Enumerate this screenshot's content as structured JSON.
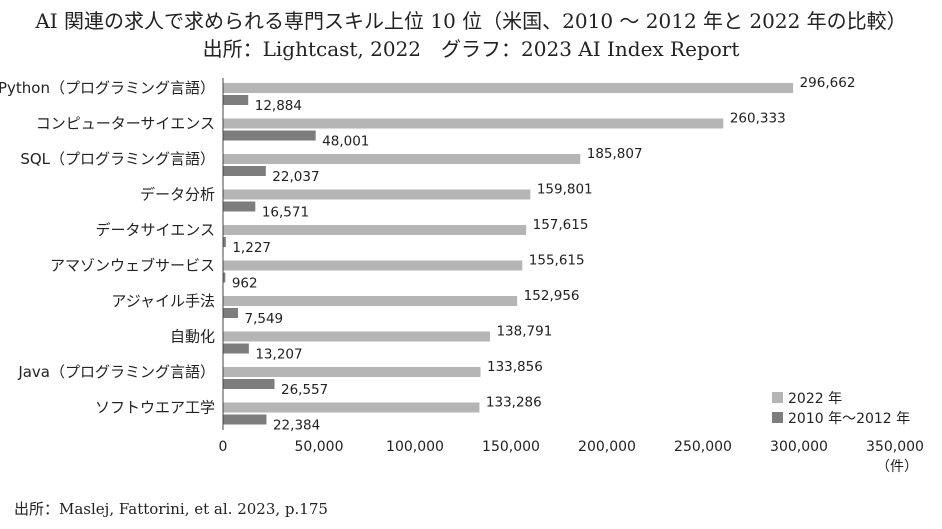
{
  "header": {
    "title_line1": "AI 関連の求人で求められる専門スキル上位 10 位（米国、2010 ～ 2012 年と 2022 年の比較）",
    "title_line2": "出所：Lightcast, 2022　グラフ：2023 AI Index Report"
  },
  "footer": {
    "source": "出所：Maslej, Fattorini, et al. 2023, p.175"
  },
  "chart_data": {
    "type": "bar",
    "orientation": "horizontal",
    "categories": [
      "Python（プログラミング言語）",
      "コンピューターサイエンス",
      "SQL（プログラミング言語）",
      "データ分析",
      "データサイエンス",
      "アマゾンウェブサービス",
      "アジャイル手法",
      "自動化",
      "Java（プログラミング言語）",
      "ソフトウエア工学"
    ],
    "series": [
      {
        "name": "2022 年",
        "color": "#b5b5b5",
        "values": [
          296662,
          260333,
          185807,
          159801,
          157615,
          155615,
          152956,
          138791,
          133856,
          133286
        ],
        "labels": [
          "296,662",
          "260,333",
          "185,807",
          "159,801",
          "157,615",
          "155,615",
          "152,956",
          "138,791",
          "133,856",
          "133,286"
        ]
      },
      {
        "name": "2010 年～2012 年",
        "color": "#7d7d7d",
        "values": [
          12884,
          48001,
          22037,
          16571,
          1227,
          962,
          7549,
          13207,
          26557,
          22384
        ],
        "labels": [
          "12,884",
          "48,001",
          "22,037",
          "16,571",
          "1,227",
          "962",
          "7,549",
          "13,207",
          "26,557",
          "22,384"
        ]
      }
    ],
    "xlim": [
      0,
      350000
    ],
    "xticks": [
      0,
      50000,
      100000,
      150000,
      200000,
      250000,
      300000,
      350000
    ],
    "xtick_labels": [
      "0",
      "50,000",
      "100,000",
      "150,000",
      "200,000",
      "250,000",
      "300,000",
      "350,000"
    ],
    "xunit": "（件）",
    "legend_position": "bottom-right",
    "grid": false
  }
}
